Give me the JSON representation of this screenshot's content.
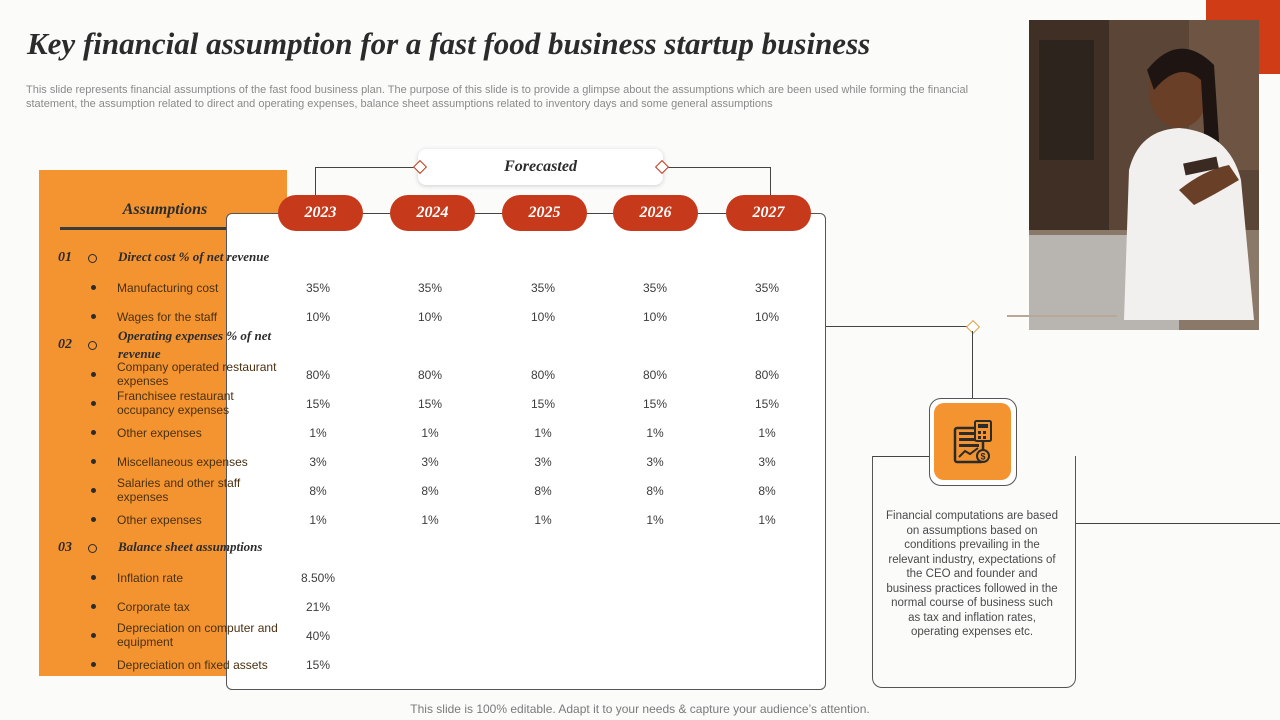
{
  "header": {
    "title": "Key financial assumption for a fast food business startup business",
    "description": "This slide represents financial assumptions of the fast food business plan. The purpose of this slide is to provide a glimpse about the assumptions which are been used while forming the financial statement, the assumption related to direct and operating expenses, balance sheet assumptions related to inventory days and some general assumptions"
  },
  "panel": {
    "title": "Assumptions"
  },
  "forecast": {
    "label": "Forecasted",
    "years": [
      "2023",
      "2024",
      "2025",
      "2026",
      "2027"
    ]
  },
  "sections": [
    {
      "num": "01",
      "title": "Direct cost % of net revenue"
    },
    {
      "num": "02",
      "title": "Operating expenses % of net revenue"
    },
    {
      "num": "03",
      "title": "Balance sheet assumptions"
    }
  ],
  "rows": [
    {
      "label": "Manufacturing cost",
      "values": [
        "35%",
        "35%",
        "35%",
        "35%",
        "35%"
      ]
    },
    {
      "label": "Wages for the staff",
      "values": [
        "10%",
        "10%",
        "10%",
        "10%",
        "10%"
      ]
    },
    {
      "label": "Company operated restaurant expenses",
      "values": [
        "80%",
        "80%",
        "80%",
        "80%",
        "80%"
      ]
    },
    {
      "label": "Franchisee restaurant occupancy expenses",
      "values": [
        "15%",
        "15%",
        "15%",
        "15%",
        "15%"
      ]
    },
    {
      "label": "Other expenses",
      "values": [
        "1%",
        "1%",
        "1%",
        "1%",
        "1%"
      ]
    },
    {
      "label": "Miscellaneous expenses",
      "values": [
        "3%",
        "3%",
        "3%",
        "3%",
        "3%"
      ]
    },
    {
      "label": "Salaries and other staff expenses",
      "values": [
        "8%",
        "8%",
        "8%",
        "8%",
        "8%"
      ]
    },
    {
      "label": "Other expenses",
      "values": [
        "1%",
        "1%",
        "1%",
        "1%",
        "1%"
      ]
    },
    {
      "label": "Inflation rate",
      "values": [
        "8.50%"
      ]
    },
    {
      "label": "Corporate tax",
      "values": [
        "21%"
      ]
    },
    {
      "label": "Depreciation on computer and equipment",
      "values": [
        "40%"
      ]
    },
    {
      "label": "Depreciation on fixed assets",
      "values": [
        "15%"
      ]
    }
  ],
  "note": {
    "text": "Financial computations are based on assumptions based on conditions prevailing in the relevant industry, expectations of the CEO and founder and business practices followed in the normal course of business such as tax and inflation rates, operating expenses etc.",
    "icon": "financial-calculator-icon"
  },
  "footer": {
    "text": "This slide is 100% editable. Adapt it to your needs & capture your audience’s attention."
  },
  "colors": {
    "accent_orange": "#f39431",
    "accent_red": "#c6391a",
    "corner": "#cf3c15"
  }
}
